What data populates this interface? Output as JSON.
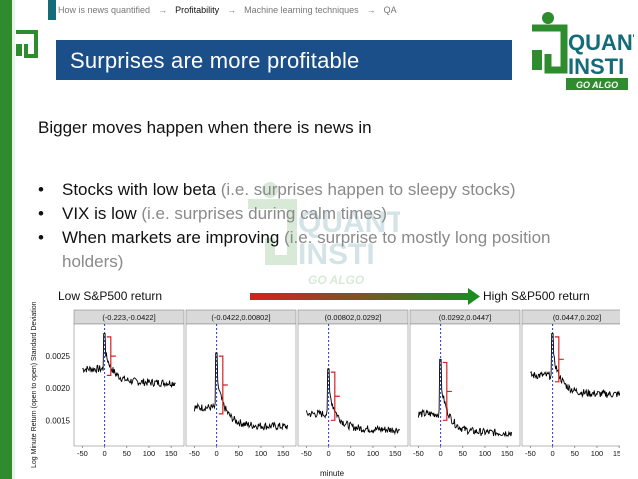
{
  "breadcrumb": {
    "items": [
      "How is news quantified",
      "Profitability",
      "Machine learning techniques",
      "QA"
    ],
    "active_index": 1
  },
  "slide": {
    "title": "Surprises are more profitable",
    "intro": "Bigger moves happen when there is news in",
    "bullets": [
      {
        "main": "Stocks with low beta",
        "note": "(i.e. surprises happen to sleepy stocks)"
      },
      {
        "main": "VIX is low",
        "note": "(i.e. surprises during calm times)"
      },
      {
        "main": "When markets are improving",
        "note": "(i.e. surprise to mostly long position holders)"
      }
    ]
  },
  "logo": {
    "line1": "QUANT",
    "line2": "INSTI",
    "tagline": "GO ALGO"
  },
  "colors": {
    "title_bg": "#1b4f8a",
    "green": "#2e8b2e",
    "teal": "#146b7a",
    "series": "#000000",
    "bracket": "#d62020",
    "vline": "#1a3fc0"
  },
  "chart_data": {
    "type": "line",
    "legend_left": "Low S&P500 return",
    "legend_right": "High S&P500 return",
    "ylabel": "Log Minute Return (open to open) Standard Deviation",
    "xlabel": "minute",
    "x_ticks": [
      -50,
      0,
      50,
      100,
      150
    ],
    "y_ticks": [
      0.0015,
      0.002,
      0.0025
    ],
    "xlim": [
      -60,
      170
    ],
    "ylim": [
      0.0011,
      0.003
    ],
    "panels": [
      {
        "label": "(-0.223,-0.0422]",
        "baseline": 0.0023,
        "end": 0.00208,
        "peak": 0.00285
      },
      {
        "label": "(-0.0422,0.00802]",
        "baseline": 0.0017,
        "end": 0.0014,
        "peak": 0.00255
      },
      {
        "label": "(0.00802,0.0292]",
        "baseline": 0.0016,
        "end": 0.00135,
        "peak": 0.0023
      },
      {
        "label": "(0.0292,0.0447]",
        "baseline": 0.0016,
        "end": 0.0013,
        "peak": 0.00245
      },
      {
        "label": "(0.0447,0.202]",
        "baseline": 0.0022,
        "end": 0.0019,
        "peak": 0.00285
      }
    ]
  }
}
